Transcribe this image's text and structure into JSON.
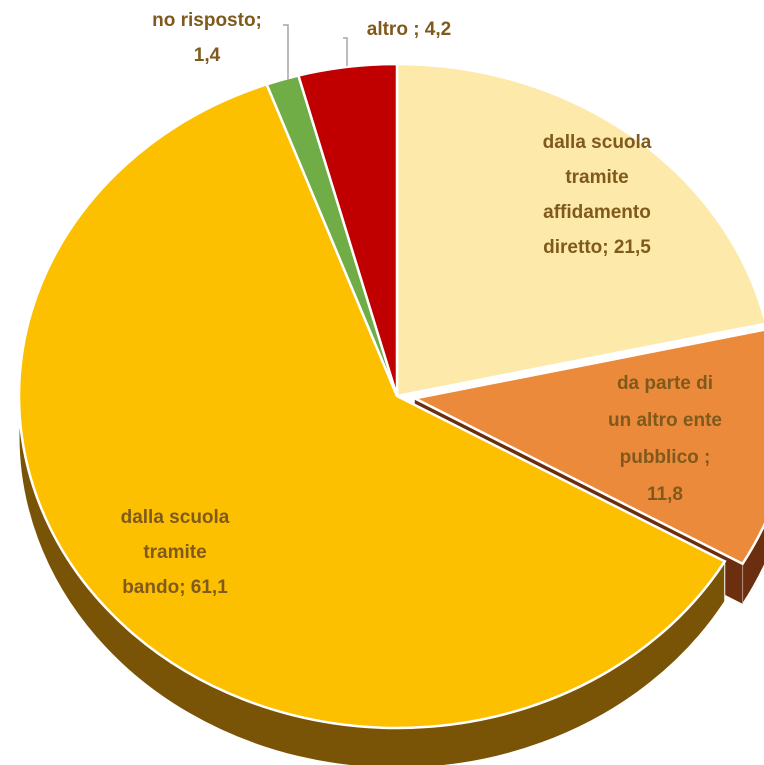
{
  "chart_data": {
    "type": "pie",
    "title": "",
    "style": "3d",
    "slices": [
      {
        "label_lines": [
          "dalla scuola",
          "tramite",
          "affidamento",
          "diretto; 21,5"
        ],
        "name": "dalla scuola tramite affidamento diretto",
        "value": 21.5,
        "color": "#fde9a9",
        "side_color": "#c9b06a"
      },
      {
        "label_lines": [
          "da parte di",
          "un altro ente",
          "pubblico      ;",
          "11,8"
        ],
        "name": "da parte di un altro ente pubblico",
        "value": 11.8,
        "color": "#ec8a3b",
        "side_color": "#6b2e0e"
      },
      {
        "label_lines": [
          "dalla scuola",
          "tramite",
          "bando; 61,1"
        ],
        "name": "dalla scuola tramite bando",
        "value": 61.1,
        "color": "#fdc000",
        "side_color": "#7a5406"
      },
      {
        "label_lines": [
          "no risposto;",
          "1,4"
        ],
        "name": "no risposto",
        "value": 1.4,
        "color": "#70ad47",
        "side_color": "#3d6a22"
      },
      {
        "label_lines": [
          "altro ; 4,2"
        ],
        "name": "altro",
        "value": 4.2,
        "color": "#c00000",
        "side_color": "#6a0000"
      }
    ]
  }
}
